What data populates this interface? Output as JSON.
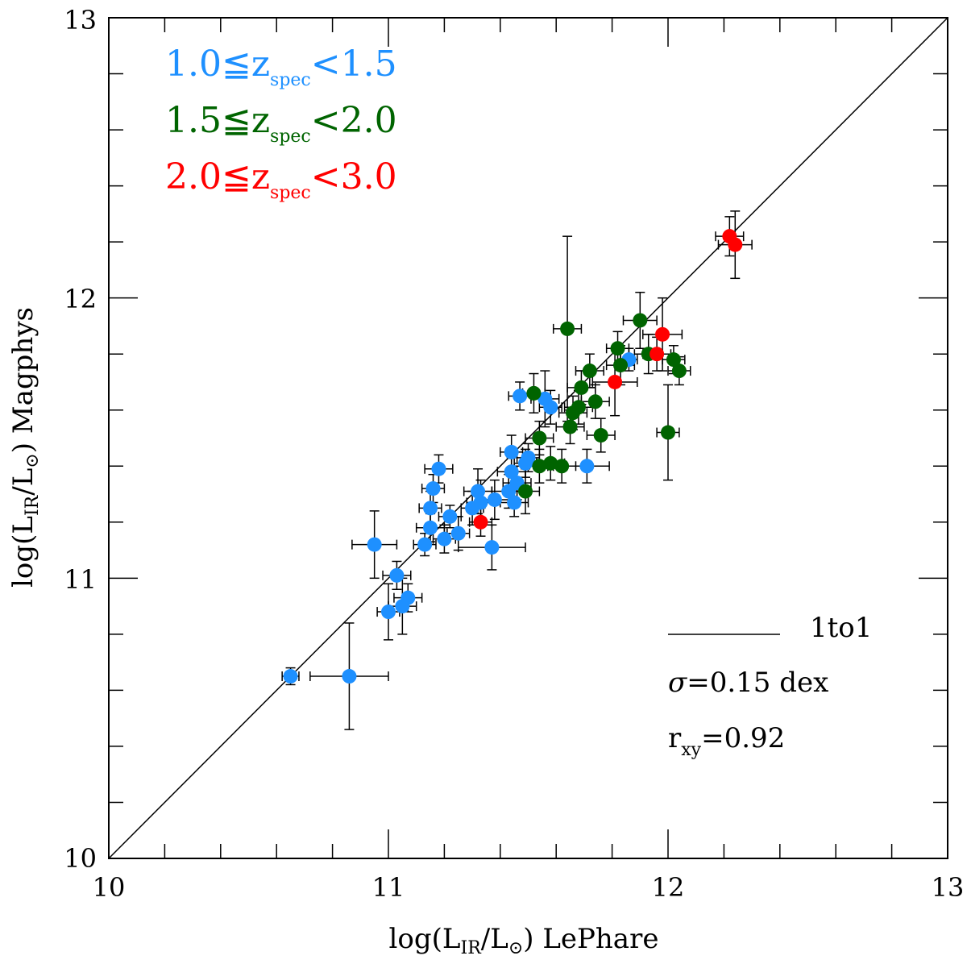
{
  "chart_data": {
    "type": "scatter",
    "title": "",
    "xlabel": {
      "prefix": "log(L",
      "sub": "IR",
      "mid": "/L",
      "sun": "⊙",
      "suffix": ") LePhare"
    },
    "ylabel": {
      "prefix": "log(L",
      "sub": "IR",
      "mid": "/L",
      "sun": "⊙",
      "suffix": ") Magphys"
    },
    "xlim": [
      10,
      13
    ],
    "ylim": [
      10,
      13
    ],
    "xticks": [
      "10",
      "11",
      "12",
      "13"
    ],
    "yticks": [
      "10",
      "11",
      "12",
      "13"
    ],
    "one_to_one_line": true,
    "legend": [
      {
        "pre": "1.0≦z",
        "sub": "spec",
        "post": "<1.5",
        "color": "#1E90FF"
      },
      {
        "pre": "1.5≦z",
        "sub": "spec",
        "post": "<2.0",
        "color": "#006400"
      },
      {
        "pre": "2.0≦z",
        "sub": "spec",
        "post": "<3.0",
        "color": "#FF0000"
      }
    ],
    "annotations": {
      "line_label": "1to1",
      "sigma_symbol": "σ",
      "sigma_text": "=0.15 dex",
      "r_main": "r",
      "r_sub": "xy",
      "r_value": "=0.92"
    },
    "series": [
      {
        "name": "1.0≤zspec<1.5",
        "color": "#1E90FF",
        "points": [
          {
            "x": 10.65,
            "y": 10.65,
            "xerr": 0.03,
            "yerr": 0.03
          },
          {
            "x": 10.86,
            "y": 10.65,
            "xerr": 0.14,
            "yerr": 0.19
          },
          {
            "x": 10.95,
            "y": 11.12,
            "xerr": 0.08,
            "yerr": 0.12
          },
          {
            "x": 11.0,
            "y": 10.88,
            "xerr": 0.04,
            "yerr": 0.1
          },
          {
            "x": 11.03,
            "y": 11.01,
            "xerr": 0.05,
            "yerr": 0.05
          },
          {
            "x": 11.05,
            "y": 10.9,
            "xerr": 0.05,
            "yerr": 0.1
          },
          {
            "x": 11.07,
            "y": 10.93,
            "xerr": 0.05,
            "yerr": 0.05
          },
          {
            "x": 11.13,
            "y": 11.12,
            "xerr": 0.04,
            "yerr": 0.04
          },
          {
            "x": 11.15,
            "y": 11.18,
            "xerr": 0.05,
            "yerr": 0.05
          },
          {
            "x": 11.15,
            "y": 11.25,
            "xerr": 0.04,
            "yerr": 0.06
          },
          {
            "x": 11.16,
            "y": 11.32,
            "xerr": 0.04,
            "yerr": 0.05
          },
          {
            "x": 11.18,
            "y": 11.39,
            "xerr": 0.05,
            "yerr": 0.05
          },
          {
            "x": 11.2,
            "y": 11.14,
            "xerr": 0.04,
            "yerr": 0.05
          },
          {
            "x": 11.22,
            "y": 11.22,
            "xerr": 0.04,
            "yerr": 0.04
          },
          {
            "x": 11.25,
            "y": 11.16,
            "xerr": 0.04,
            "yerr": 0.06
          },
          {
            "x": 11.3,
            "y": 11.25,
            "xerr": 0.04,
            "yerr": 0.06
          },
          {
            "x": 11.32,
            "y": 11.31,
            "xerr": 0.05,
            "yerr": 0.08
          },
          {
            "x": 11.33,
            "y": 11.27,
            "xerr": 0.05,
            "yerr": 0.08
          },
          {
            "x": 11.37,
            "y": 11.11,
            "xerr": 0.12,
            "yerr": 0.08
          },
          {
            "x": 11.38,
            "y": 11.28,
            "xerr": 0.05,
            "yerr": 0.07
          },
          {
            "x": 11.43,
            "y": 11.31,
            "xerr": 0.06,
            "yerr": 0.06
          },
          {
            "x": 11.44,
            "y": 11.45,
            "xerr": 0.04,
            "yerr": 0.06
          },
          {
            "x": 11.44,
            "y": 11.38,
            "xerr": 0.05,
            "yerr": 0.05
          },
          {
            "x": 11.45,
            "y": 11.27,
            "xerr": 0.05,
            "yerr": 0.05
          },
          {
            "x": 11.46,
            "y": 11.34,
            "xerr": 0.05,
            "yerr": 0.06
          },
          {
            "x": 11.47,
            "y": 11.65,
            "xerr": 0.04,
            "yerr": 0.05
          },
          {
            "x": 11.49,
            "y": 11.41,
            "xerr": 0.04,
            "yerr": 0.05
          },
          {
            "x": 11.5,
            "y": 11.43,
            "xerr": 0.04,
            "yerr": 0.05
          },
          {
            "x": 11.56,
            "y": 11.64,
            "xerr": 0.05,
            "yerr": 0.1
          },
          {
            "x": 11.58,
            "y": 11.61,
            "xerr": 0.04,
            "yerr": 0.06
          },
          {
            "x": 11.71,
            "y": 11.4,
            "xerr": 0.08,
            "yerr": 0.06
          },
          {
            "x": 11.86,
            "y": 11.78,
            "xerr": 0.03,
            "yerr": 0.04
          }
        ]
      },
      {
        "name": "1.5≤zspec<2.0",
        "color": "#006400",
        "points": [
          {
            "x": 11.49,
            "y": 11.31,
            "xerr": 0.05,
            "yerr": 0.08
          },
          {
            "x": 11.52,
            "y": 11.66,
            "xerr": 0.04,
            "yerr": 0.07
          },
          {
            "x": 11.54,
            "y": 11.5,
            "xerr": 0.05,
            "yerr": 0.06
          },
          {
            "x": 11.54,
            "y": 11.4,
            "xerr": 0.05,
            "yerr": 0.06
          },
          {
            "x": 11.58,
            "y": 11.41,
            "xerr": 0.05,
            "yerr": 0.06
          },
          {
            "x": 11.62,
            "y": 11.4,
            "xerr": 0.05,
            "yerr": 0.06
          },
          {
            "x": 11.64,
            "y": 11.89,
            "xerr": 0.05,
            "yerr": 0.33
          },
          {
            "x": 11.65,
            "y": 11.54,
            "xerr": 0.05,
            "yerr": 0.06
          },
          {
            "x": 11.66,
            "y": 11.59,
            "xerr": 0.05,
            "yerr": 0.06
          },
          {
            "x": 11.68,
            "y": 11.61,
            "xerr": 0.05,
            "yerr": 0.06
          },
          {
            "x": 11.69,
            "y": 11.68,
            "xerr": 0.05,
            "yerr": 0.06
          },
          {
            "x": 11.72,
            "y": 11.74,
            "xerr": 0.05,
            "yerr": 0.06
          },
          {
            "x": 11.74,
            "y": 11.63,
            "xerr": 0.05,
            "yerr": 0.06
          },
          {
            "x": 11.76,
            "y": 11.51,
            "xerr": 0.05,
            "yerr": 0.06
          },
          {
            "x": 11.82,
            "y": 11.82,
            "xerr": 0.04,
            "yerr": 0.06
          },
          {
            "x": 11.83,
            "y": 11.76,
            "xerr": 0.05,
            "yerr": 0.07
          },
          {
            "x": 11.9,
            "y": 11.92,
            "xerr": 0.06,
            "yerr": 0.1
          },
          {
            "x": 11.93,
            "y": 11.8,
            "xerr": 0.05,
            "yerr": 0.07
          },
          {
            "x": 12.0,
            "y": 11.52,
            "xerr": 0.04,
            "yerr": 0.17
          },
          {
            "x": 12.02,
            "y": 11.78,
            "xerr": 0.04,
            "yerr": 0.05
          },
          {
            "x": 12.04,
            "y": 11.74,
            "xerr": 0.04,
            "yerr": 0.05
          }
        ]
      },
      {
        "name": "2.0≤zspec<3.0",
        "color": "#FF0000",
        "points": [
          {
            "x": 11.33,
            "y": 11.2,
            "xerr": 0.04,
            "yerr": 0.05
          },
          {
            "x": 11.81,
            "y": 11.7,
            "xerr": 0.08,
            "yerr": 0.12
          },
          {
            "x": 11.96,
            "y": 11.8,
            "xerr": 0.05,
            "yerr": 0.06
          },
          {
            "x": 11.98,
            "y": 11.87,
            "xerr": 0.07,
            "yerr": 0.13
          },
          {
            "x": 12.22,
            "y": 12.22,
            "xerr": 0.05,
            "yerr": 0.07
          },
          {
            "x": 12.24,
            "y": 12.19,
            "xerr": 0.06,
            "yerr": 0.12
          }
        ]
      }
    ]
  }
}
